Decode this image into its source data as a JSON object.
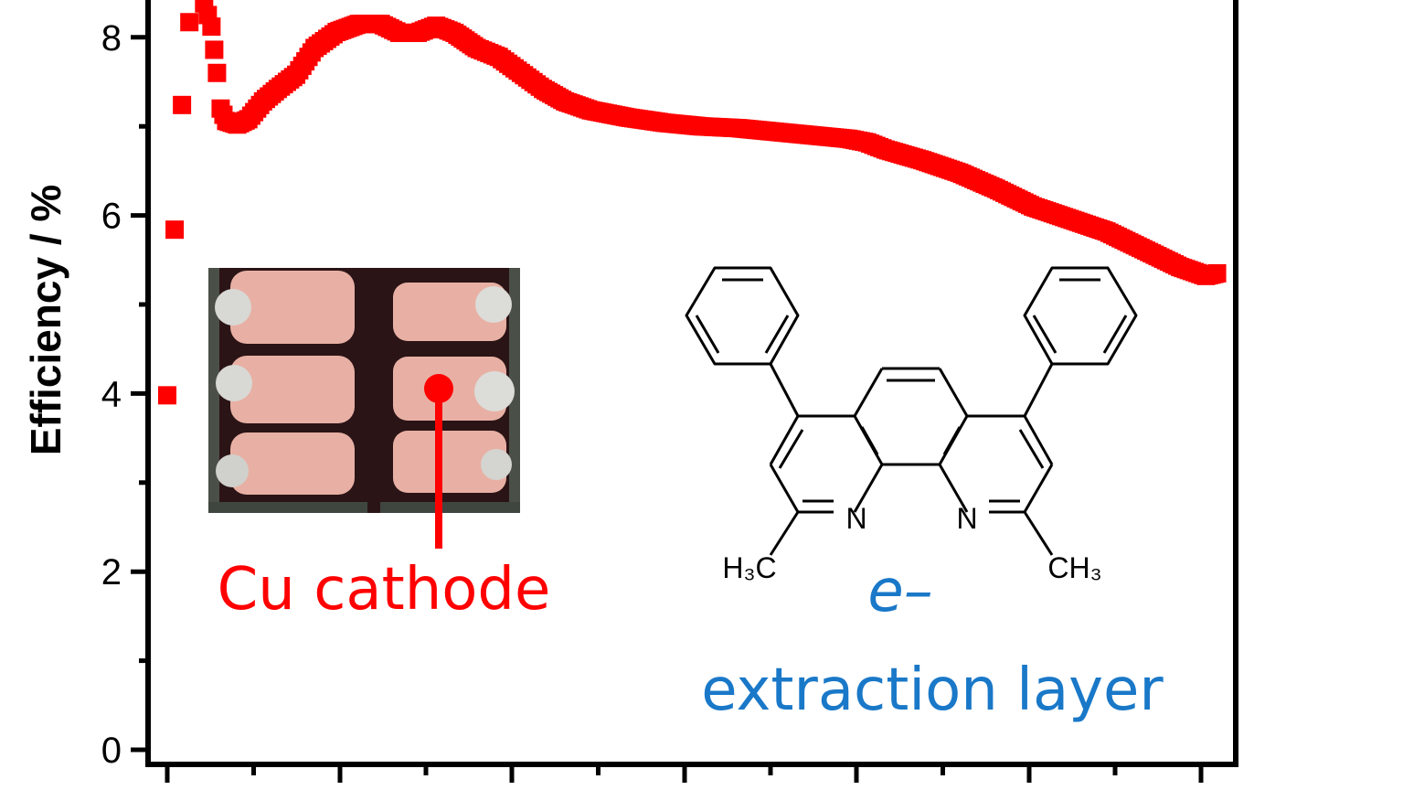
{
  "colors": {
    "series": "#ff0000",
    "annotation_blue": "#1a78c8",
    "axis": "#000000"
  },
  "chart_data": {
    "type": "scatter",
    "ylabel": "Efficiency / %",
    "xlabel": "",
    "ylim": [
      0,
      8.4
    ],
    "yticks": [
      0,
      2,
      4,
      6,
      8
    ],
    "legend": "none",
    "grid": false,
    "series": [
      {
        "points": [
          [
            0.0,
            3.98
          ],
          [
            0.2,
            5.84
          ],
          [
            0.4,
            7.24
          ],
          [
            0.6,
            8.17
          ],
          [
            1.0,
            8.38
          ],
          [
            1.2,
            8.12
          ],
          [
            1.35,
            7.6
          ],
          [
            1.45,
            7.2
          ],
          [
            1.6,
            7.06
          ],
          [
            1.9,
            7.02
          ],
          [
            2.2,
            7.08
          ],
          [
            2.6,
            7.28
          ],
          [
            3.0,
            7.42
          ],
          [
            3.5,
            7.58
          ],
          [
            4.0,
            7.88
          ],
          [
            4.6,
            8.06
          ],
          [
            5.2,
            8.15
          ],
          [
            5.8,
            8.15
          ],
          [
            6.3,
            8.05
          ],
          [
            6.8,
            8.05
          ],
          [
            7.3,
            8.13
          ],
          [
            7.8,
            8.05
          ],
          [
            8.4,
            7.88
          ],
          [
            9.0,
            7.78
          ],
          [
            9.6,
            7.6
          ],
          [
            10.2,
            7.42
          ],
          [
            10.8,
            7.28
          ],
          [
            11.5,
            7.18
          ],
          [
            12.5,
            7.1
          ],
          [
            13.5,
            7.04
          ],
          [
            14.5,
            7.0
          ],
          [
            15.5,
            6.98
          ],
          [
            16.5,
            6.94
          ],
          [
            17.5,
            6.9
          ],
          [
            18.5,
            6.86
          ],
          [
            19.0,
            6.82
          ],
          [
            19.5,
            6.74
          ],
          [
            20.5,
            6.62
          ],
          [
            21.5,
            6.48
          ],
          [
            22.5,
            6.3
          ],
          [
            23.5,
            6.1
          ],
          [
            24.5,
            5.96
          ],
          [
            25.5,
            5.82
          ],
          [
            26.5,
            5.62
          ],
          [
            27.5,
            5.42
          ],
          [
            28.2,
            5.32
          ],
          [
            28.5,
            5.35
          ]
        ]
      }
    ]
  },
  "annotations": {
    "photo_label": "Cu cathode",
    "molecule_label_symbol": "e–",
    "molecule_label_text": "extraction layer"
  },
  "molecule": {
    "atom_n_left": "N",
    "atom_n_right": "N",
    "methyl_left": "H₃C",
    "methyl_right": "CH₃"
  }
}
